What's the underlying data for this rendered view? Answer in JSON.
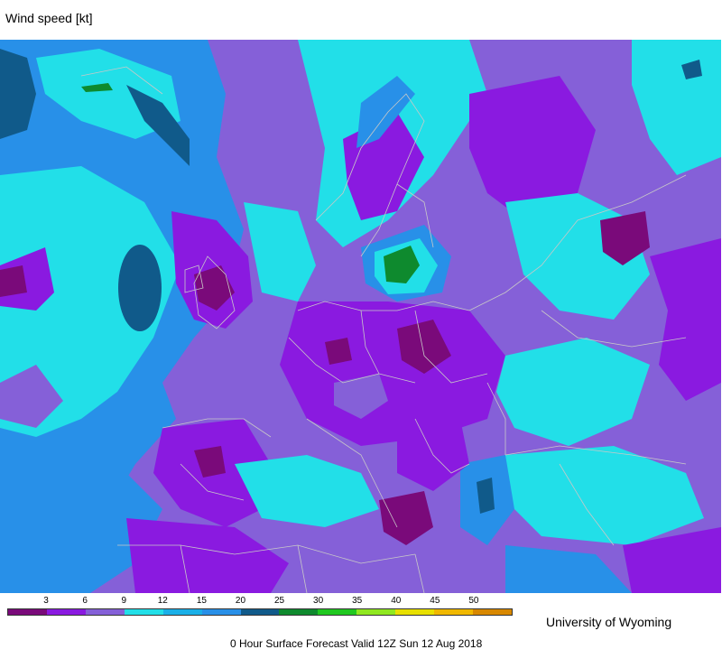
{
  "title": "Wind speed [kt]",
  "credit": "University of Wyoming",
  "footer": "0 Hour Surface Forecast Valid 12Z Sun 12 Aug 2018",
  "legend": {
    "ticks": [
      "3",
      "6",
      "9",
      "12",
      "15",
      "20",
      "25",
      "30",
      "35",
      "40",
      "45",
      "50"
    ],
    "colors": [
      "#7a0a7a",
      "#8a1ae0",
      "#8560d8",
      "#22dfe8",
      "#1ab0e8",
      "#2890e8",
      "#105a8a",
      "#0e8a2e",
      "#20c820",
      "#90e820",
      "#e8e000",
      "#f0b800",
      "#d88800"
    ]
  },
  "map_colors": {
    "background": "#8560d8",
    "light_cyan": "#22dfe8",
    "blue": "#2890e8",
    "dark_blue": "#105a8a",
    "purple": "#8a1ae0",
    "dark_purple": "#7a0a7a",
    "green": "#0e8a2e",
    "border": "#c8c8c8"
  }
}
